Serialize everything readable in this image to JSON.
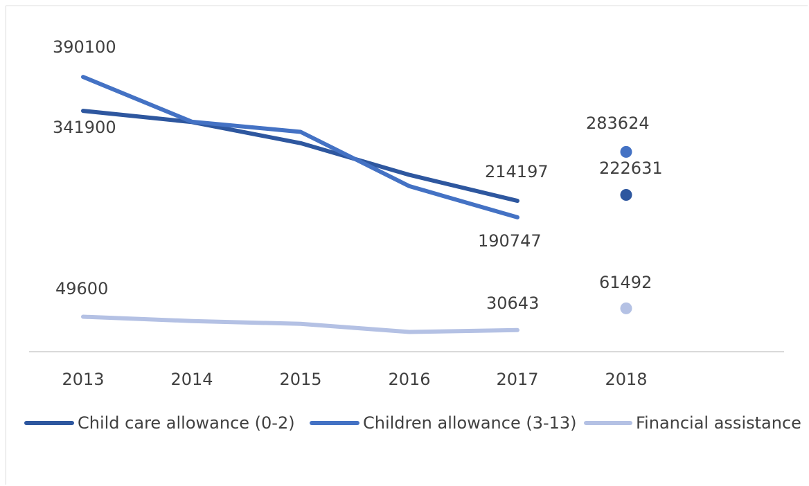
{
  "chart_data": {
    "type": "line",
    "categories": [
      "2013",
      "2014",
      "2015",
      "2016",
      "2017",
      "2018"
    ],
    "series": [
      {
        "name": "Child care allowance (0-2)",
        "color": "#2e579f",
        "values": [
          341900,
          326000,
          296000,
          251000,
          214197,
          null
        ],
        "point_2018": 222631,
        "labels": [
          {
            "index": 0,
            "text": "341900"
          },
          {
            "index": 4,
            "text": "214197"
          },
          {
            "index": 5,
            "text": "222631"
          }
        ]
      },
      {
        "name": "Children allowance (3-13)",
        "color": "#4472c4",
        "values": [
          390100,
          326500,
          312000,
          235000,
          190747,
          null
        ],
        "point_2018": 283624,
        "labels": [
          {
            "index": 0,
            "text": "390100"
          },
          {
            "index": 4,
            "text": "190747"
          },
          {
            "index": 5,
            "text": "283624"
          }
        ]
      },
      {
        "name": "Financial assistance",
        "color": "#b4c1e4",
        "values": [
          49600,
          43500,
          39500,
          28000,
          30643,
          null
        ],
        "point_2018": 61492,
        "labels": [
          {
            "index": 0,
            "text": "49600"
          },
          {
            "index": 4,
            "text": "30643"
          },
          {
            "index": 5,
            "text": "61492"
          }
        ]
      }
    ],
    "ylim": [
      0,
      500000
    ],
    "grid": false,
    "legend": "bottom"
  }
}
